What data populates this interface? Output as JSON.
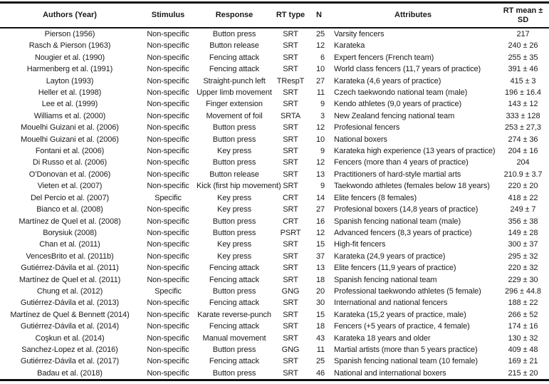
{
  "table": {
    "columns": [
      {
        "key": "authors",
        "label": "Authors (Year)"
      },
      {
        "key": "stimulus",
        "label": "Stimulus"
      },
      {
        "key": "response",
        "label": "Response"
      },
      {
        "key": "rt_type",
        "label": "RT type"
      },
      {
        "key": "n",
        "label": "N"
      },
      {
        "key": "attributes",
        "label": "Attributes"
      },
      {
        "key": "rt_mean",
        "label": "RT mean ± SD"
      }
    ],
    "rows": [
      {
        "authors": "Pierson (1956)",
        "stimulus": "Non-specific",
        "response": "Button press",
        "rt_type": "SRT",
        "n": "25",
        "attributes": "Varsity fencers",
        "rt_mean": "217"
      },
      {
        "authors": "Rasch & Pierson (1963)",
        "stimulus": "Non-specific",
        "response": "Button release",
        "rt_type": "SRT",
        "n": "12",
        "attributes": "Karateka",
        "rt_mean": "240 ± 26"
      },
      {
        "authors": "Nougier et al. (1990)",
        "stimulus": "Non-specific",
        "response": "Fencing attack",
        "rt_type": "SRT",
        "n": "6",
        "attributes": "Expert fencers (French team)",
        "rt_mean": "255 ± 35"
      },
      {
        "authors": "Harmenberg et al. (1991)",
        "stimulus": "Non-specific",
        "response": "Fencing attack",
        "rt_type": "SRT",
        "n": "10",
        "attributes": "World class fencers (11,7 years of practice)",
        "rt_mean": "391 ± 46"
      },
      {
        "authors": "Layton (1993)",
        "stimulus": "Non-specific",
        "response": "Straight-punch left",
        "rt_type": "TRespT",
        "n": "27",
        "attributes": "Karateka (4,6 years of practice)",
        "rt_mean": "415 ± 3"
      },
      {
        "authors": "Heller et al. (1998)",
        "stimulus": "Non-specific",
        "response": "Upper limb movement",
        "rt_type": "SRT",
        "n": "11",
        "attributes": "Czech taekwondo national team (male)",
        "rt_mean": "196 ± 16.4"
      },
      {
        "authors": "Lee et al. (1999)",
        "stimulus": "Non-specific",
        "response": "Finger extension",
        "rt_type": "SRT",
        "n": "9",
        "attributes": "Kendo athletes (9,0 years of practice)",
        "rt_mean": "143 ± 12"
      },
      {
        "authors": "Williams et al. (2000)",
        "stimulus": "Non-specific",
        "response": "Movement of foil",
        "rt_type": "SRTA",
        "n": "3",
        "attributes": "New Zealand fencing national team",
        "rt_mean": "333 ± 128"
      },
      {
        "authors": "Mouelhi Guizani et al. (2006)",
        "stimulus": "Non-specific",
        "response": "Button press",
        "rt_type": "SRT",
        "n": "12",
        "attributes": "Profesional fencers",
        "rt_mean": "253 ± 27,3"
      },
      {
        "authors": "Mouelhi Guizani et al. (2006)",
        "stimulus": "Non-specific",
        "response": "Button press",
        "rt_type": "SRT",
        "n": "10",
        "attributes": "National boxers",
        "rt_mean": "274 ± 36"
      },
      {
        "authors": "Fontani et al. (2006)",
        "stimulus": "Non-specific",
        "response": "Key press",
        "rt_type": "SRT",
        "n": "9",
        "attributes": "Karateka high experience (13 years of practice)",
        "rt_mean": "204 ± 16"
      },
      {
        "authors": "Di Russo et al. (2006)",
        "stimulus": "Non-specific",
        "response": "Button press",
        "rt_type": "SRT",
        "n": "12",
        "attributes": "Fencers (more than 4 years of practice)",
        "rt_mean": "204"
      },
      {
        "authors": "O’Donovan et al. (2006)",
        "stimulus": "Non-specific",
        "response": "Button release",
        "rt_type": "SRT",
        "n": "13",
        "attributes": "Practitioners of hard-style martial arts",
        "rt_mean": "210.9 ± 3.7"
      },
      {
        "authors": "Vieten et al. (2007)",
        "stimulus": "Non-specific",
        "response": "Kick (first hip movement)",
        "rt_type": "SRT",
        "n": "9",
        "attributes": "Taekwondo athletes (females below 18 years)",
        "rt_mean": "220 ± 20"
      },
      {
        "authors": "Del Percio et al. (2007)",
        "stimulus": "Specific",
        "response": "Key press",
        "rt_type": "CRT",
        "n": "14",
        "attributes": "Elite fencers (8 females)",
        "rt_mean": "418 ± 22"
      },
      {
        "authors": "Bianco et al. (2008)",
        "stimulus": "Non-specific",
        "response": "Key press",
        "rt_type": "SRT",
        "n": "27",
        "attributes": "Profesional boxers (14,8 years of practice)",
        "rt_mean": "249 ± 7"
      },
      {
        "authors": "Martínez de Quel et al. (2008)",
        "stimulus": "Non-specific",
        "response": "Button press",
        "rt_type": "CRT",
        "n": "16",
        "attributes": "Spanish fencing national team (male)",
        "rt_mean": "356 ± 38"
      },
      {
        "authors": "Borysiuk (2008)",
        "stimulus": "Non-specific",
        "response": "Button press",
        "rt_type": "PSRT",
        "n": "12",
        "attributes": "Advanced fencers (8,3 years of practice)",
        "rt_mean": "149 ± 28"
      },
      {
        "authors": "Chan et al. (2011)",
        "stimulus": "Non-specific",
        "response": "Key press",
        "rt_type": "SRT",
        "n": "15",
        "attributes": "High-fit fencers",
        "rt_mean": "300 ± 37"
      },
      {
        "authors": "VencesBrito et al. (2011b)",
        "stimulus": "Non-specific",
        "response": "Key press",
        "rt_type": "SRT",
        "n": "37",
        "attributes": "Karateka (24,9 years of practice)",
        "rt_mean": "295 ± 32"
      },
      {
        "authors": "Gutiérrez-Dávila et al. (2011)",
        "stimulus": "Non-specific",
        "response": "Fencing attack",
        "rt_type": "SRT",
        "n": "13",
        "attributes": "Elite fencers (11,9 years of practice)",
        "rt_mean": "220 ± 32"
      },
      {
        "authors": "Martínez de Quel et al. (2011)",
        "stimulus": "Non-specific",
        "response": "Fencing attack",
        "rt_type": "SRT",
        "n": "18",
        "attributes": "Spanish fencing national team",
        "rt_mean": "229 ± 30"
      },
      {
        "authors": "Chung et al. (2012)",
        "stimulus": "Specific",
        "response": "Button press",
        "rt_type": "GNG",
        "n": "20",
        "attributes": "Professional taekwondo athletes (5 female)",
        "rt_mean": "296 ± 44.8"
      },
      {
        "authors": "Gutiérrez-Dávila et al. (2013)",
        "stimulus": "Non-specific",
        "response": "Fencing attack",
        "rt_type": "SRT",
        "n": "30",
        "attributes": "International and national fencers",
        "rt_mean": "188 ± 22"
      },
      {
        "authors": "Martínez de Quel & Bennett (2014)",
        "stimulus": "Non-specific",
        "response": "Karate reverse-punch",
        "rt_type": "SRT",
        "n": "15",
        "attributes": "Karateka (15,2 years of practice, male)",
        "rt_mean": "266 ± 52"
      },
      {
        "authors": "Gutiérrez-Dávila et al. (2014)",
        "stimulus": "Non-specific",
        "response": "Fencing attack",
        "rt_type": "SRT",
        "n": "18",
        "attributes": "Fencers (+5 years of practice, 4 female)",
        "rt_mean": "174 ± 16"
      },
      {
        "authors": "Coşkun et al. (2014)",
        "stimulus": "Non-specific",
        "response": "Manual movement",
        "rt_type": "SRT",
        "n": "43",
        "attributes": "Karateka 18 years and older",
        "rt_mean": "130 ± 32"
      },
      {
        "authors": "Sanchez-Lopez et al. (2016)",
        "stimulus": "Non-specific",
        "response": "Button press",
        "rt_type": "GNG",
        "n": "11",
        "attributes": "Martial artists (more than 5 years practice)",
        "rt_mean": "409 ± 48"
      },
      {
        "authors": "Gutiérrez-Dávila et al. (2017)",
        "stimulus": "Non-specific",
        "response": "Fencing attack",
        "rt_type": "SRT",
        "n": "25",
        "attributes": "Spanish fencing national team (10 female)",
        "rt_mean": "169 ± 21"
      },
      {
        "authors": "Badau et al. (2018)",
        "stimulus": "Non-specific",
        "response": "Button press",
        "rt_type": "SRT",
        "n": "46",
        "attributes": "National and international boxers",
        "rt_mean": "215 ± 20"
      }
    ]
  }
}
